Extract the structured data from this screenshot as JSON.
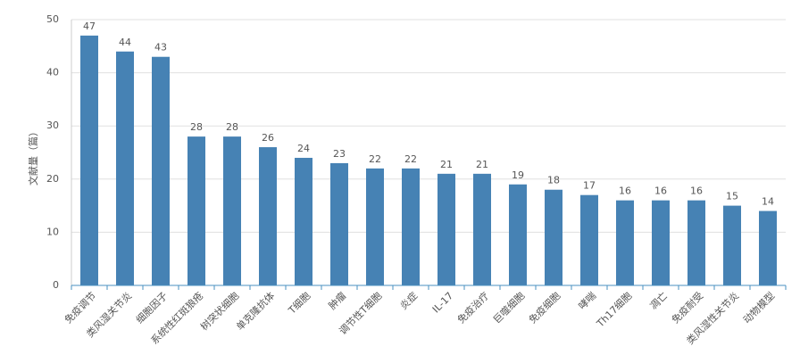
{
  "chart_data": {
    "type": "bar",
    "y_label": "文献量（篇）",
    "categories": [
      "免疫调节",
      "类风湿关节炎",
      "细胞因子",
      "系统性红斑狼疮",
      "树突状细胞",
      "单克隆抗体",
      "T细胞",
      "肿瘤",
      "调节性T细胞",
      "炎症",
      "IL-17",
      "免疫治疗",
      "巨噬细胞",
      "免疫细胞",
      "哮喘",
      "Th17细胞",
      "凋亡",
      "免疫耐受",
      "类风湿性关节炎",
      "动物模型"
    ],
    "values": [
      47,
      44,
      43,
      28,
      28,
      26,
      24,
      23,
      22,
      22,
      21,
      21,
      19,
      18,
      17,
      16,
      16,
      16,
      15,
      14
    ],
    "color": "#4682b4",
    "ylim": [
      0,
      50
    ],
    "yticks": [
      0,
      10,
      20,
      30,
      40,
      50
    ],
    "grid": true
  }
}
